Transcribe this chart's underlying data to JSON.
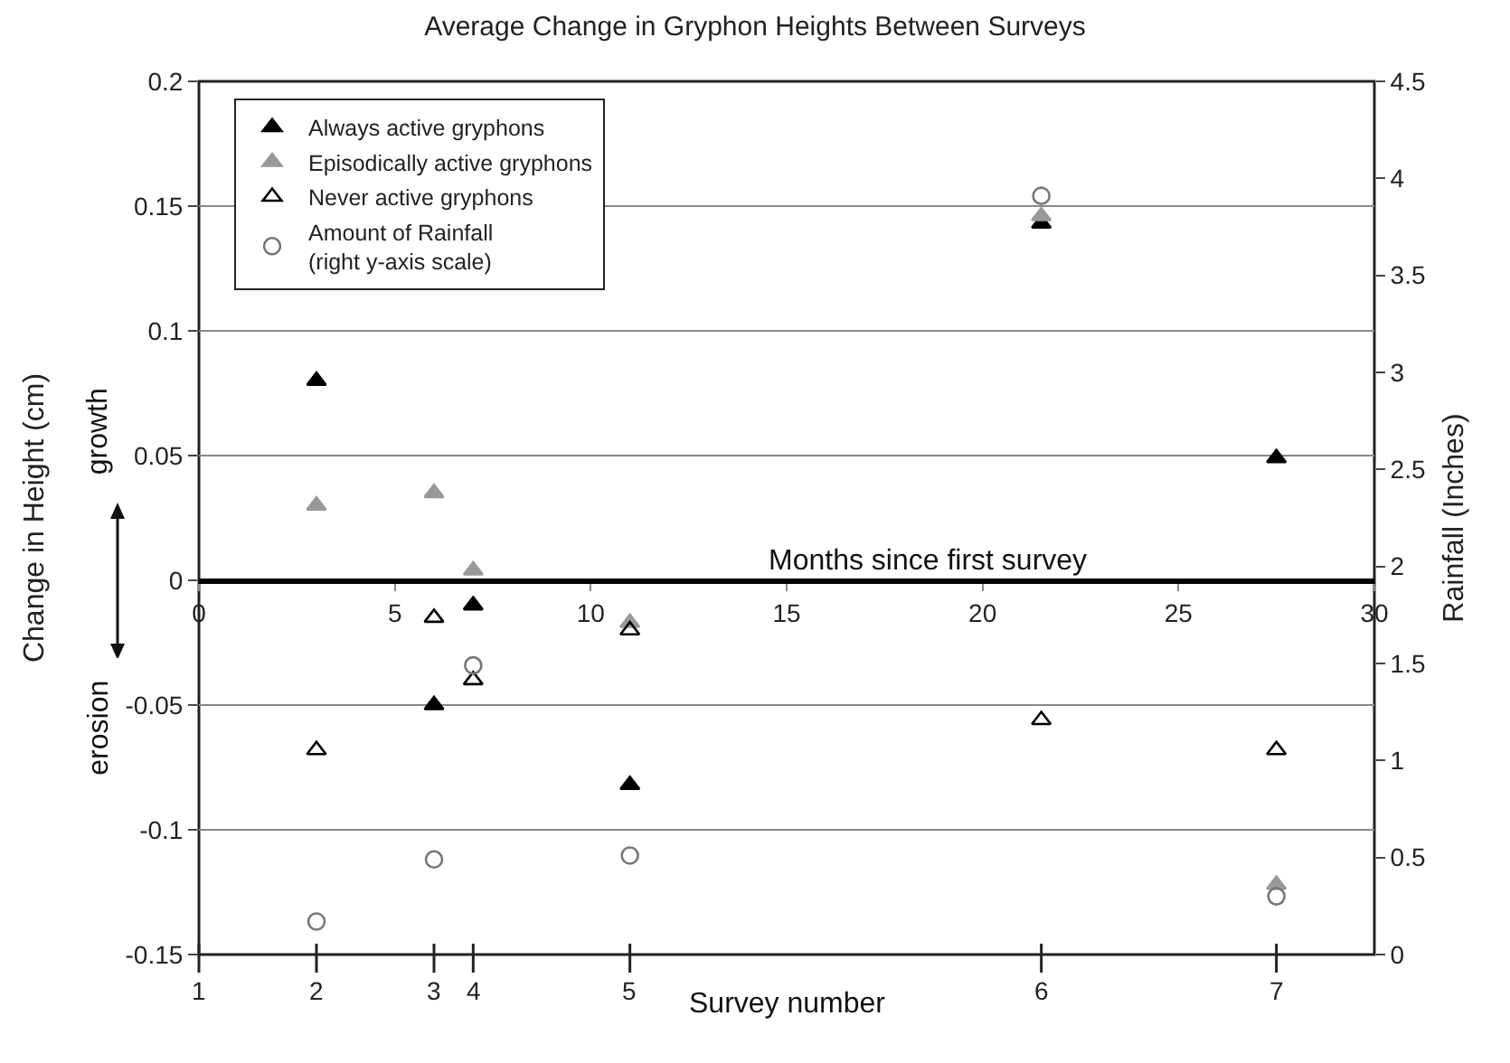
{
  "chart_data": {
    "type": "scatter",
    "title": "Average Change in Gryphon Heights Between Surveys",
    "xlabel": "Months since first survey",
    "ylabel": "Change in Height (cm)",
    "y2label": "Rainfall (Inches)",
    "annotations": [
      "growth",
      "erosion",
      "Survey number",
      "1",
      "2",
      "3",
      "4",
      "5",
      "6",
      "7"
    ],
    "x": [
      3,
      6,
      7,
      11,
      21.5,
      27.5
    ],
    "series": [
      {
        "name": "Always active gryphons",
        "color": "#000000",
        "marker": "triangle",
        "values": [
          0.08,
          -0.05,
          -0.01,
          -0.082,
          0.143,
          0.049
        ]
      },
      {
        "name": "Episodically active gryphons",
        "color": "#999999",
        "marker": "triangle",
        "values": [
          0.03,
          0.035,
          0.004,
          -0.017,
          0.146,
          -0.122
        ]
      },
      {
        "name": "Never active gryphons",
        "color": "#000000",
        "marker": "triangle-open",
        "values": [
          -0.068,
          -0.015,
          -0.04,
          -0.02,
          -0.056,
          -0.068
        ]
      },
      {
        "name": "Amount of Rainfall\n(right y-axis scale)",
        "color": "#777777",
        "marker": "circle-open",
        "axis": "y2",
        "values": [
          0.17,
          0.49,
          1.49,
          0.51,
          3.91,
          0.3
        ]
      }
    ],
    "xlim": [
      0,
      30
    ],
    "xticks": [
      0,
      5,
      10,
      15,
      20,
      25,
      30
    ],
    "ylim": [
      -0.15,
      0.2
    ],
    "yticks": [
      -0.15,
      -0.1,
      -0.05,
      0,
      0.05,
      0.1,
      0.15,
      0.2
    ],
    "y2lim": [
      0,
      4.5
    ],
    "y2ticks": [
      0,
      0.5,
      1,
      1.5,
      2,
      2.5,
      3,
      3.5,
      4,
      4.5
    ],
    "grid": "y",
    "legend": "top left"
  }
}
